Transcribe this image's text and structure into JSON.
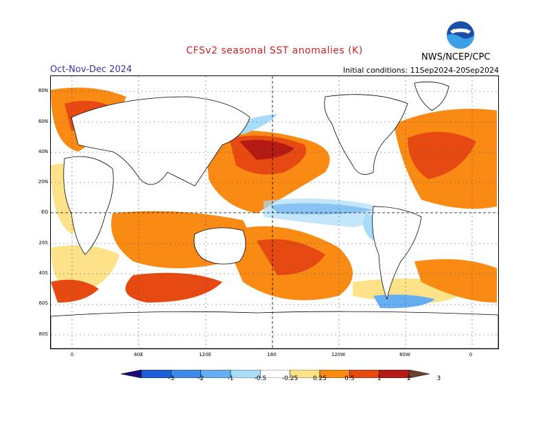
{
  "title": "CFSv2 seasonal SST anomalies (K)",
  "season": "Oct-Nov-Dec 2024",
  "initial_conditions": "Initial conditions: 11Sep2024-20Sep2024",
  "agency": "NWS/NCEP/CPC",
  "logo_text": "NOAA",
  "colors": {
    "title": "#cc2222",
    "season": "#3333aa",
    "land_outline": "#000000",
    "ocean_neutral": "#ffffff",
    "gridline": "#555555"
  },
  "lat_labels": [
    "80N",
    "60N",
    "40N",
    "20N",
    "EQ",
    "20S",
    "40S",
    "60S",
    "80S"
  ],
  "lon_labels": [
    "0",
    "60E",
    "120E",
    "180",
    "120W",
    "60W",
    "0"
  ],
  "colorbar": {
    "ticks": [
      "-3",
      "-2",
      "-1",
      "-0.5",
      "-0.25",
      "0.25",
      "0.5",
      "1",
      "2",
      "3"
    ],
    "bins": [
      {
        "label": "< -3",
        "color": "#1a0a7a"
      },
      {
        "label": "-3 to -2",
        "color": "#1e5fd8"
      },
      {
        "label": "-2 to -1",
        "color": "#3c8be8"
      },
      {
        "label": "-1 to -0.5",
        "color": "#66aef2"
      },
      {
        "label": "-0.5 to -0.25",
        "color": "#a9dcf8"
      },
      {
        "label": "-0.25 to 0.25",
        "color": "#ffffff"
      },
      {
        "label": "0.25 to 0.5",
        "color": "#fde28a"
      },
      {
        "label": "0.5 to 1",
        "color": "#f98a14"
      },
      {
        "label": "1 to 2",
        "color": "#e64a12"
      },
      {
        "label": "2 to 3",
        "color": "#b51a14"
      },
      {
        "label": "> 3",
        "color": "#6e4030"
      }
    ]
  }
}
